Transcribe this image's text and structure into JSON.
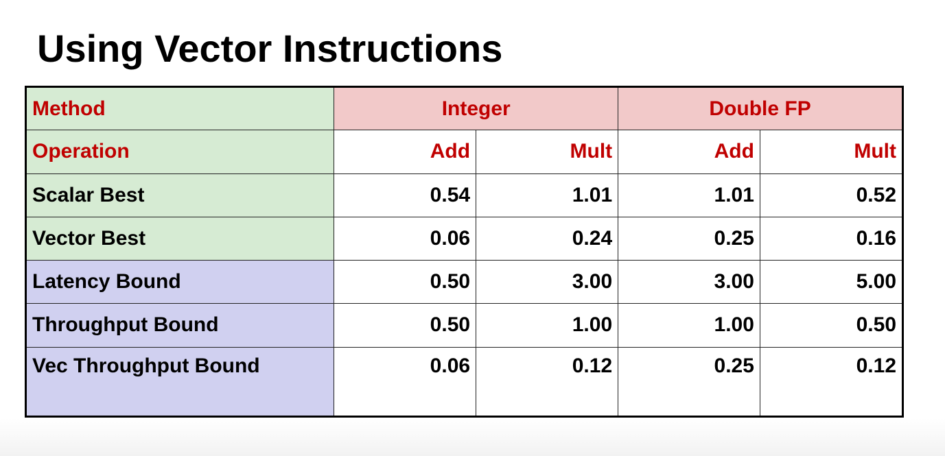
{
  "title": "Using Vector Instructions",
  "table": {
    "method_label": "Method",
    "groups": [
      "Integer",
      "Double FP"
    ],
    "operation_label": "Operation",
    "ops": [
      "Add",
      "Mult",
      "Add",
      "Mult"
    ],
    "rows": [
      {
        "label": "Scalar Best",
        "values": [
          "0.54",
          "1.01",
          "1.01",
          "0.52"
        ]
      },
      {
        "label": "Vector Best",
        "values": [
          "0.06",
          "0.24",
          "0.25",
          "0.16"
        ]
      },
      {
        "label": "Latency Bound",
        "values": [
          "0.50",
          "3.00",
          "3.00",
          "5.00"
        ]
      },
      {
        "label": "Throughput Bound",
        "values": [
          "0.50",
          "1.00",
          "1.00",
          "0.50"
        ]
      },
      {
        "label": "Vec Throughput Bound",
        "values": [
          "0.06",
          "0.12",
          "0.25",
          "0.12"
        ]
      }
    ]
  },
  "colors": {
    "header_text": "#c00000",
    "green_cells": "#d6ebd3",
    "blue_cells": "#d0d0f0",
    "pink_cells": "#f2c9c9"
  }
}
